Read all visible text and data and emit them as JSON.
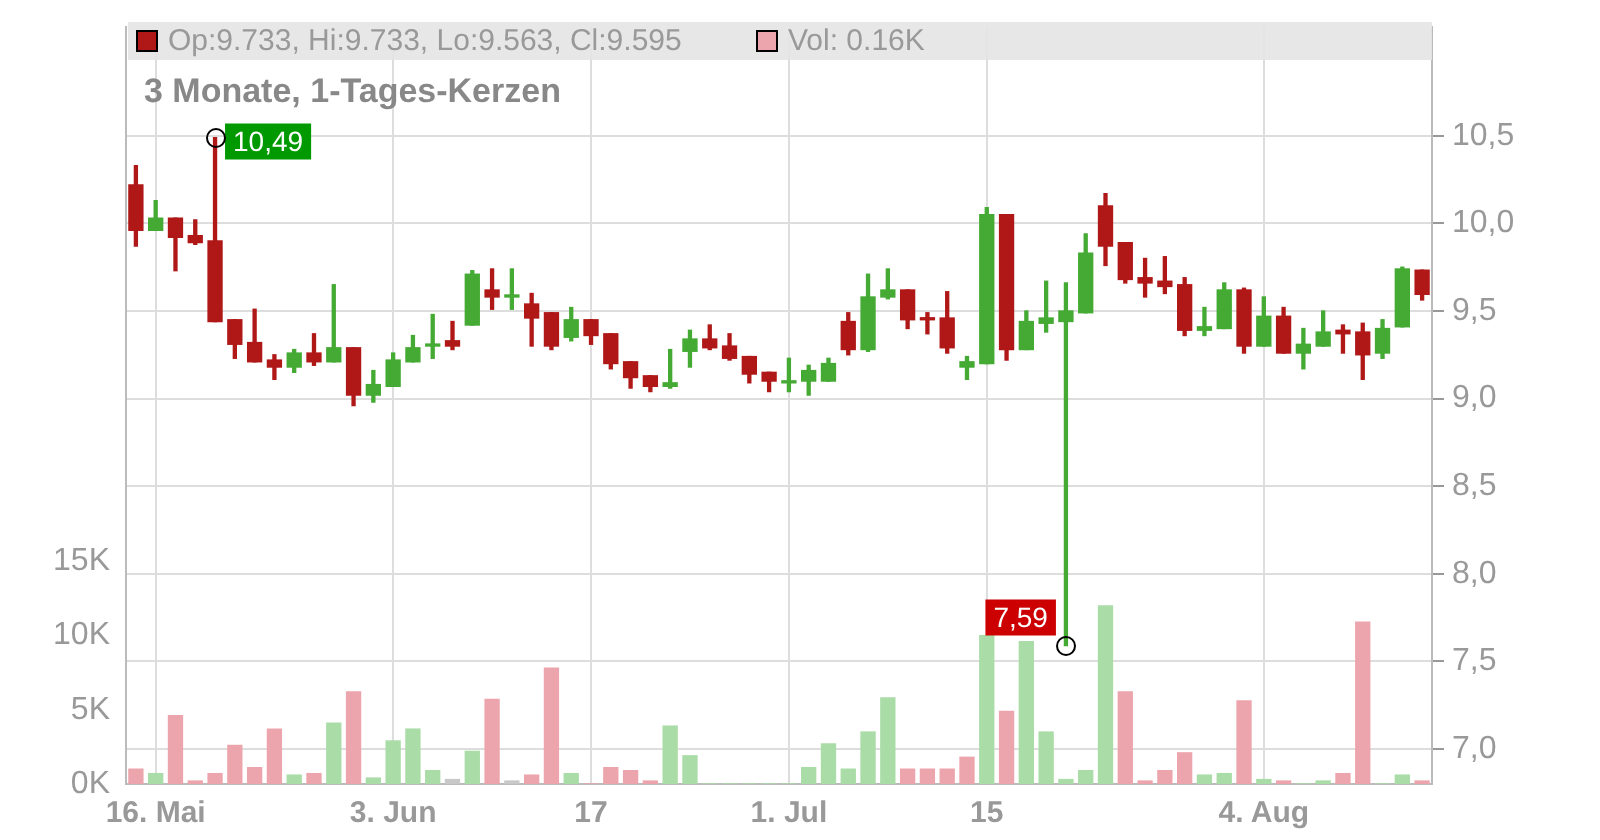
{
  "chart_data": {
    "type": "candlestick",
    "title": "3 Monate, 1-Tages-Kerzen",
    "annotations": [
      "Op:9.733, Hi:9.733, Lo:9.563, Cl:9.595",
      "Vol: 0.16K",
      {
        "text": "10,49",
        "y": 10.49
      },
      {
        "text": "7,59",
        "y": 7.59
      }
    ],
    "categories": [
      null,
      "16. Mai",
      null,
      null,
      null,
      null,
      null,
      null,
      null,
      null,
      null,
      null,
      null,
      "3. Jun",
      null,
      null,
      null,
      null,
      null,
      null,
      null,
      null,
      null,
      "17",
      null,
      null,
      null,
      null,
      null,
      null,
      null,
      null,
      null,
      "1. Jul",
      null,
      null,
      null,
      null,
      null,
      null,
      null,
      null,
      null,
      "15",
      null,
      null,
      null,
      null,
      null,
      null,
      null,
      null,
      null,
      null,
      null,
      null,
      null,
      "4. Aug",
      null,
      null,
      null,
      null,
      null,
      null,
      null,
      null
    ],
    "ohlc": [
      [
        10.22,
        10.33,
        9.87,
        9.96
      ],
      [
        9.96,
        10.13,
        9.96,
        10.03
      ],
      [
        10.03,
        10.03,
        9.73,
        9.92
      ],
      [
        9.93,
        10.02,
        9.88,
        9.89
      ],
      [
        9.9,
        10.49,
        9.44,
        9.44
      ],
      [
        9.45,
        9.45,
        9.23,
        9.31
      ],
      [
        9.32,
        9.51,
        9.21,
        9.21
      ],
      [
        9.22,
        9.25,
        9.11,
        9.18
      ],
      [
        9.18,
        9.28,
        9.15,
        9.26
      ],
      [
        9.26,
        9.37,
        9.19,
        9.21
      ],
      [
        9.21,
        9.65,
        9.21,
        9.29
      ],
      [
        9.29,
        9.29,
        8.96,
        9.02
      ],
      [
        9.02,
        9.16,
        8.98,
        9.08
      ],
      [
        9.07,
        9.26,
        9.07,
        9.22
      ],
      [
        9.21,
        9.36,
        9.21,
        9.29
      ],
      [
        9.3,
        9.48,
        9.23,
        9.31
      ],
      [
        9.33,
        9.44,
        9.28,
        9.3
      ],
      [
        9.42,
        9.73,
        9.42,
        9.71
      ],
      [
        9.62,
        9.74,
        9.51,
        9.58
      ],
      [
        9.58,
        9.74,
        9.51,
        9.59
      ],
      [
        9.54,
        9.6,
        9.3,
        9.46
      ],
      [
        9.49,
        9.49,
        9.28,
        9.3
      ],
      [
        9.35,
        9.52,
        9.33,
        9.45
      ],
      [
        9.45,
        9.45,
        9.31,
        9.36
      ],
      [
        9.37,
        9.37,
        9.17,
        9.2
      ],
      [
        9.21,
        9.21,
        9.06,
        9.12
      ],
      [
        9.13,
        9.13,
        9.04,
        9.07
      ],
      [
        9.07,
        9.28,
        9.06,
        9.09
      ],
      [
        9.27,
        9.39,
        9.18,
        9.34
      ],
      [
        9.34,
        9.42,
        9.28,
        9.29
      ],
      [
        9.3,
        9.37,
        9.22,
        9.23
      ],
      [
        9.24,
        9.24,
        9.09,
        9.14
      ],
      [
        9.15,
        9.15,
        9.04,
        9.1
      ],
      [
        9.09,
        9.23,
        9.04,
        9.1
      ],
      [
        9.1,
        9.19,
        9.02,
        9.16
      ],
      [
        9.1,
        9.23,
        9.1,
        9.2
      ],
      [
        9.44,
        9.49,
        9.25,
        9.28
      ],
      [
        9.28,
        9.71,
        9.27,
        9.58
      ],
      [
        9.58,
        9.74,
        9.57,
        9.62
      ],
      [
        9.62,
        9.62,
        9.4,
        9.45
      ],
      [
        9.46,
        9.49,
        9.37,
        9.45
      ],
      [
        9.46,
        9.61,
        9.26,
        9.29
      ],
      [
        9.18,
        9.24,
        9.11,
        9.21
      ],
      [
        9.2,
        10.09,
        9.2,
        10.05
      ],
      [
        10.05,
        10.05,
        9.22,
        9.28
      ],
      [
        9.28,
        9.5,
        9.28,
        9.44
      ],
      [
        9.43,
        9.67,
        9.38,
        9.46
      ],
      [
        9.44,
        9.66,
        7.59,
        9.5
      ],
      [
        9.49,
        9.94,
        9.49,
        9.83
      ],
      [
        10.1,
        10.17,
        9.76,
        9.87
      ],
      [
        9.89,
        9.89,
        9.66,
        9.68
      ],
      [
        9.69,
        9.8,
        9.58,
        9.66
      ],
      [
        9.67,
        9.81,
        9.6,
        9.64
      ],
      [
        9.65,
        9.69,
        9.36,
        9.39
      ],
      [
        9.39,
        9.52,
        9.36,
        9.41
      ],
      [
        9.4,
        9.66,
        9.4,
        9.62
      ],
      [
        9.62,
        9.63,
        9.26,
        9.3
      ],
      [
        9.3,
        9.58,
        9.3,
        9.47
      ],
      [
        9.47,
        9.52,
        9.26,
        9.26
      ],
      [
        9.26,
        9.4,
        9.17,
        9.31
      ],
      [
        9.3,
        9.5,
        9.3,
        9.38
      ],
      [
        9.39,
        9.42,
        9.26,
        9.37
      ],
      [
        9.38,
        9.43,
        9.11,
        9.25
      ],
      [
        9.26,
        9.45,
        9.23,
        9.4
      ],
      [
        9.41,
        9.75,
        9.41,
        9.74
      ],
      [
        9.733,
        9.733,
        9.563,
        9.595
      ]
    ],
    "colors": [
      "#b01818",
      "#44aa33",
      "#b01818",
      "#b01818",
      "#b01818",
      "#b01818",
      "#b01818",
      "#b01818",
      "#44aa33",
      "#b01818",
      "#44aa33",
      "#b01818",
      "#44aa33",
      "#44aa33",
      "#44aa33",
      "#44aa33",
      "#b01818",
      "#44aa33",
      "#b01818",
      "#44aa33",
      "#b01818",
      "#b01818",
      "#44aa33",
      "#b01818",
      "#b01818",
      "#b01818",
      "#b01818",
      "#44aa33",
      "#44aa33",
      "#b01818",
      "#b01818",
      "#b01818",
      "#b01818",
      "#44aa33",
      "#44aa33",
      "#44aa33",
      "#b01818",
      "#44aa33",
      "#44aa33",
      "#b01818",
      "#b01818",
      "#b01818",
      "#44aa33",
      "#44aa33",
      "#b01818",
      "#44aa33",
      "#44aa33",
      "#44aa33",
      "#44aa33",
      "#b01818",
      "#b01818",
      "#b01818",
      "#b01818",
      "#b01818",
      "#44aa33",
      "#44aa33",
      "#b01818",
      "#44aa33",
      "#b01818",
      "#44aa33",
      "#44aa33",
      "#b01818",
      "#b01818",
      "#44aa33",
      "#44aa33",
      "#b01818"
    ],
    "series": [
      {
        "type": "bar",
        "axis": "y2",
        "values": [
          1.0,
          0.7,
          4.6,
          0.2,
          0.7,
          2.6,
          1.1,
          3.7,
          0.6,
          0.7,
          4.1,
          6.2,
          0.4,
          2.9,
          3.7,
          0.9,
          0.3,
          2.2,
          5.7,
          0.2,
          0.6,
          7.8,
          0.7,
          0,
          1.1,
          0.9,
          0.2,
          3.9,
          1.9,
          0,
          0,
          0,
          0,
          0,
          1.1,
          2.7,
          1.0,
          3.5,
          5.8,
          1.0,
          1.0,
          1.0,
          1.8,
          10.0,
          4.9,
          9.6,
          3.5,
          0.3,
          0.9,
          12.0,
          6.2,
          0.2,
          0.9,
          2.1,
          0.6,
          0.7,
          5.6,
          0.3,
          0.2,
          0,
          0.2,
          0.7,
          10.9,
          0,
          0.6,
          0.2
        ],
        "colors": [
          "#eda5ad",
          "#a9dca6",
          "#eda5ad",
          "#eda5ad",
          "#eda5ad",
          "#eda5ad",
          "#eda5ad",
          "#eda5ad",
          "#a9dca6",
          "#eda5ad",
          "#a9dca6",
          "#eda5ad",
          "#a9dca6",
          "#a9dca6",
          "#a9dca6",
          "#a9dca6",
          "#c8c8c8",
          "#a9dca6",
          "#eda5ad",
          "#c8c8c8",
          "#eda5ad",
          "#eda5ad",
          "#a9dca6",
          "#eda5ad",
          "#eda5ad",
          "#eda5ad",
          "#eda5ad",
          "#a9dca6",
          "#a9dca6",
          "#a9dca6",
          "#a9dca6",
          "#a9dca6",
          "#a9dca6",
          "#a9dca6",
          "#a9dca6",
          "#a9dca6",
          "#a9dca6",
          "#a9dca6",
          "#a9dca6",
          "#eda5ad",
          "#eda5ad",
          "#eda5ad",
          "#eda5ad",
          "#a9dca6",
          "#eda5ad",
          "#a9dca6",
          "#a9dca6",
          "#a9dca6",
          "#a9dca6",
          "#a9dca6",
          "#eda5ad",
          "#eda5ad",
          "#eda5ad",
          "#eda5ad",
          "#a9dca6",
          "#a9dca6",
          "#eda5ad",
          "#a9dca6",
          "#eda5ad",
          "#a9dca6",
          "#a9dca6",
          "#eda5ad",
          "#eda5ad",
          "#a9dca6",
          "#a9dca6",
          "#eda5ad"
        ]
      }
    ],
    "ylim": [
      6.8,
      11.12
    ],
    "yticks": [
      {
        "value": 7,
        "label": "7,0"
      },
      {
        "value": 7.5,
        "label": "7,5"
      },
      {
        "value": 8,
        "label": "8,0"
      },
      {
        "value": 8.5,
        "label": "8,5"
      },
      {
        "value": 9,
        "label": "9,0"
      },
      {
        "value": 9.5,
        "label": "9,5"
      },
      {
        "value": 10,
        "label": "10,0"
      },
      {
        "value": 10.5,
        "label": "10,5"
      }
    ],
    "y2lim": [
      0,
      51
    ],
    "y2ticks": [
      {
        "value": 0,
        "label": "0K"
      },
      {
        "value": 5,
        "label": "5K"
      },
      {
        "value": 10,
        "label": "10K"
      },
      {
        "value": 15,
        "label": "15K"
      }
    ],
    "grid": true,
    "legend": false
  }
}
